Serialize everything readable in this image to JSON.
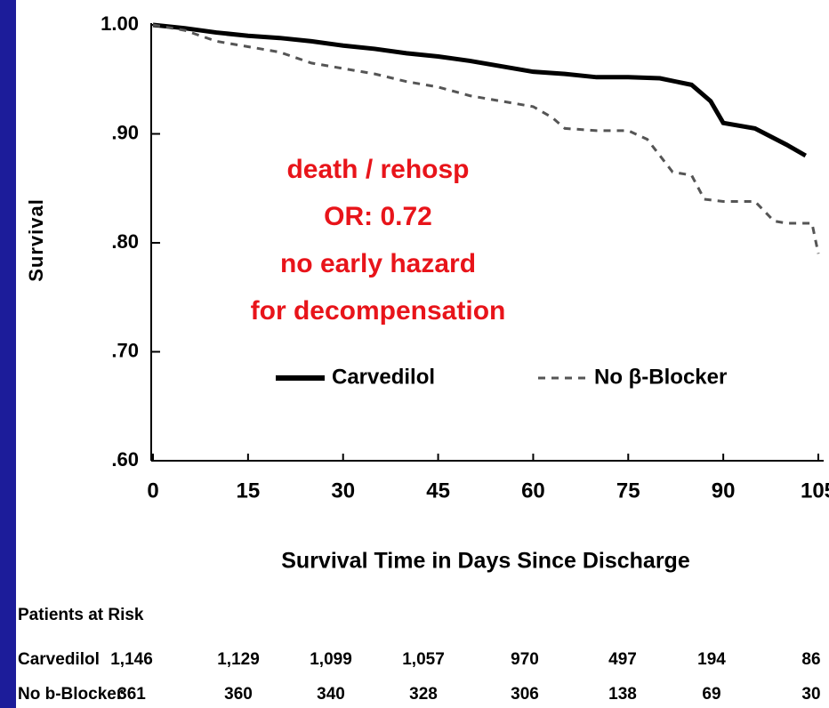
{
  "chart_data": {
    "type": "line",
    "y_label": "Survival",
    "x_label": "Survival Time in Days Since Discharge",
    "xlim": [
      0,
      105
    ],
    "xticks": [
      0,
      15,
      30,
      45,
      60,
      75,
      90,
      105
    ],
    "ylim": [
      0.6,
      1.0
    ],
    "yticks": [
      {
        "value": 0.6,
        "label": ".60"
      },
      {
        "value": 0.7,
        "label": ".70"
      },
      {
        "value": 0.8,
        "label": ".80"
      },
      {
        "value": 0.9,
        "label": ".90"
      },
      {
        "value": 1.0,
        "label": "1.00"
      }
    ],
    "series": [
      {
        "name": "Carvedilol",
        "color": "#000000",
        "dashed": false,
        "x": [
          0,
          5,
          10,
          15,
          20,
          25,
          30,
          35,
          40,
          45,
          50,
          55,
          60,
          65,
          70,
          75,
          80,
          85,
          88,
          90,
          95,
          100,
          103
        ],
        "values": [
          1.0,
          0.997,
          0.993,
          0.99,
          0.988,
          0.985,
          0.981,
          0.978,
          0.974,
          0.971,
          0.967,
          0.962,
          0.957,
          0.955,
          0.952,
          0.952,
          0.951,
          0.945,
          0.93,
          0.91,
          0.905,
          0.89,
          0.88
        ]
      },
      {
        "name": "No β-Blocker",
        "color": "#555555",
        "dashed": true,
        "x": [
          0,
          5,
          10,
          15,
          20,
          25,
          30,
          35,
          40,
          45,
          50,
          55,
          60,
          63,
          65,
          70,
          75,
          78,
          80,
          82,
          85,
          87,
          90,
          95,
          98,
          100,
          104,
          105
        ],
        "values": [
          1.0,
          0.995,
          0.985,
          0.98,
          0.975,
          0.965,
          0.96,
          0.955,
          0.948,
          0.943,
          0.935,
          0.93,
          0.925,
          0.915,
          0.905,
          0.903,
          0.903,
          0.895,
          0.88,
          0.865,
          0.862,
          0.84,
          0.838,
          0.838,
          0.82,
          0.818,
          0.818,
          0.79
        ]
      }
    ],
    "annotation": [
      "death / rehosp",
      "OR: 0.72",
      "no early hazard",
      "for decompensation"
    ],
    "risk_table": {
      "title": "Patients at Risk",
      "rows": [
        {
          "label": "Carvedilol",
          "values": [
            "1,146",
            "1,129",
            "1,099",
            "1,057",
            "970",
            "497",
            "194",
            "86"
          ]
        },
        {
          "label": "No b-Blocker",
          "values": [
            "361",
            "360",
            "340",
            "328",
            "306",
            "138",
            "69",
            "30"
          ]
        }
      ]
    }
  }
}
